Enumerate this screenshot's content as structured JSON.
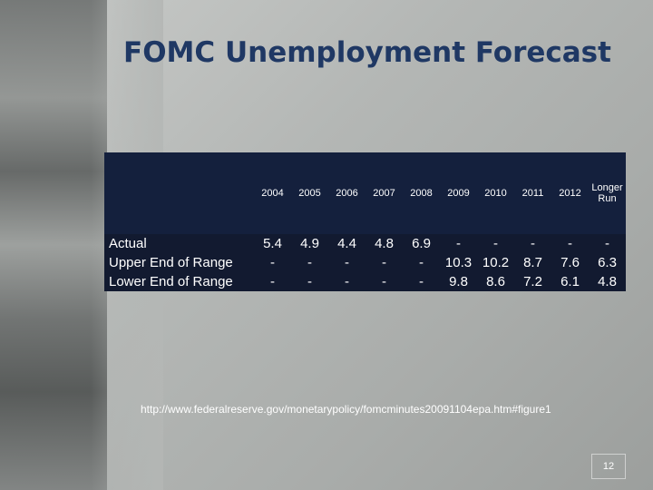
{
  "title": "FOMC Unemployment Forecast",
  "table": {
    "header": [
      "2004",
      "2005",
      "2006",
      "2007",
      "2008",
      "2009",
      "2010",
      "2011",
      "2012",
      "Longer Run"
    ],
    "rows": [
      {
        "label": "Actual",
        "values": [
          5.4,
          4.9,
          4.4,
          4.8,
          6.9,
          "-",
          "-",
          "-",
          "-",
          "-"
        ]
      },
      {
        "label": "Upper End of Range",
        "values": [
          "-",
          "-",
          "-",
          "-",
          "-",
          10.3,
          10.2,
          8.7,
          7.6,
          6.3
        ]
      },
      {
        "label": "Lower End of Range",
        "values": [
          "-",
          "-",
          "-",
          "-",
          "-",
          9.8,
          8.6,
          7.2,
          6.1,
          4.8
        ]
      }
    ]
  },
  "source": "http://www.federalreserve.gov/monetarypolicy/fomcminutes20091104epa.htm#figure1",
  "page_number": "12"
}
